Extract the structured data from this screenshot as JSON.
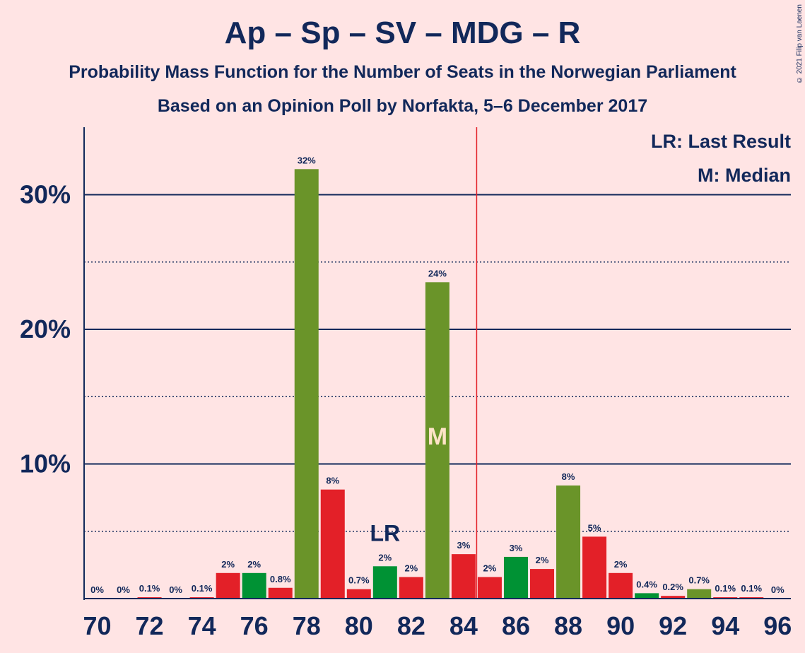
{
  "title": "Ap – Sp – SV – MDG – R",
  "subtitle": "Probability Mass Function for the Number of Seats in the Norwegian Parliament",
  "subtitle2": "Based on an Opinion Poll by Norfakta, 5–6 December 2017",
  "copyright": "© 2021 Filip van Laenen",
  "legend": {
    "last_result": "LR: Last Result",
    "median": "M: Median"
  },
  "colors": {
    "background": "#ffe4e4",
    "red": "#e32028",
    "green": "#009234",
    "olive": "#6a9429",
    "navy": "#12285a",
    "majority_line": "#e32028",
    "median_text": "#ffe4c8"
  },
  "chart_data": {
    "type": "bar",
    "x": [
      70,
      71,
      72,
      73,
      74,
      75,
      76,
      77,
      78,
      79,
      80,
      81,
      82,
      83,
      84,
      85,
      86,
      87,
      88,
      89,
      90,
      91,
      92,
      93,
      94,
      95,
      96
    ],
    "values": [
      0,
      0,
      0.1,
      0,
      0.1,
      1.9,
      1.9,
      0.8,
      31.9,
      8.1,
      0.7,
      2.4,
      1.6,
      23.5,
      3.3,
      1.6,
      3.1,
      2.2,
      8.4,
      4.6,
      1.9,
      0.4,
      0.2,
      0.7,
      0.1,
      0.1,
      0
    ],
    "value_labels": [
      "0%",
      "0%",
      "0.1%",
      "0%",
      "0.1%",
      "2%",
      "2%",
      "0.8%",
      "32%",
      "8%",
      "0.7%",
      "2%",
      "2%",
      "24%",
      "3%",
      "2%",
      "3%",
      "2%",
      "8%",
      "5%",
      "2%",
      "0.4%",
      "0.2%",
      "0.7%",
      "0.1%",
      "0.1%",
      "0%"
    ],
    "bar_colors": [
      "red",
      "red",
      "red",
      "red",
      "red",
      "red",
      "green",
      "red",
      "olive",
      "red",
      "red",
      "green",
      "red",
      "olive",
      "red",
      "red",
      "green",
      "red",
      "olive",
      "red",
      "red",
      "green",
      "red",
      "olive",
      "red",
      "red",
      "red"
    ],
    "x_tick_labels": [
      "70",
      "72",
      "74",
      "76",
      "78",
      "80",
      "82",
      "84",
      "86",
      "88",
      "90",
      "92",
      "94",
      "96"
    ],
    "y_tick_labels": [
      "10%",
      "20%",
      "30%"
    ],
    "ylim": [
      0,
      35
    ],
    "last_result_seat": 81,
    "last_result_label": "LR",
    "median_seat": 83,
    "median_label": "M",
    "majority_threshold": 85
  }
}
